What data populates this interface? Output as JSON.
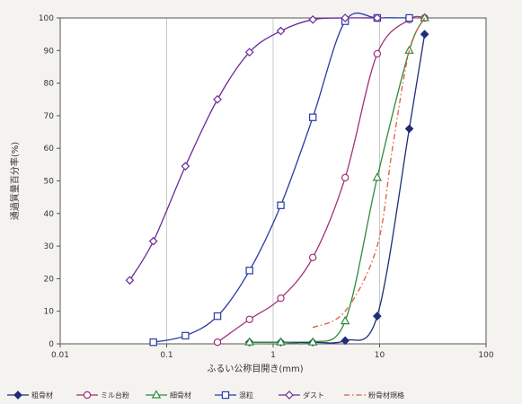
{
  "chart_data": {
    "type": "line",
    "xscale": "log",
    "xlim": [
      0.01,
      100
    ],
    "ylim": [
      0,
      100
    ],
    "x_ticks": [
      0.01,
      0.1,
      1,
      10,
      100
    ],
    "x_tick_labels": [
      "0.01",
      "0.1",
      "1",
      "10",
      "100"
    ],
    "y_ticks": [
      0,
      10,
      20,
      30,
      40,
      50,
      60,
      70,
      80,
      90,
      100
    ],
    "y_tick_labels": [
      "0",
      "10",
      "20",
      "30",
      "40",
      "50",
      "60",
      "70",
      "80",
      "90",
      "100"
    ],
    "xlabel": "ふるい公称目開き(mm)",
    "ylabel": "通過質量百分率(%)",
    "grid": "vertical",
    "legend_position": "bottom",
    "series": [
      {
        "name": "粗骨材",
        "color": "#1f2d7a",
        "marker": "filled-diamond",
        "line": "solid",
        "points": [
          [
            0.6,
            0.5
          ],
          [
            1.18,
            0.5
          ],
          [
            2.36,
            0.5
          ],
          [
            4.75,
            1
          ],
          [
            9.5,
            8.5
          ],
          [
            19,
            66
          ],
          [
            26.5,
            95
          ]
        ]
      },
      {
        "name": "ミル台粉",
        "color": "#a0307a",
        "marker": "open-circle",
        "line": "solid",
        "points": [
          [
            0.3,
            0.5
          ],
          [
            0.6,
            7.5
          ],
          [
            1.18,
            14
          ],
          [
            2.36,
            26.5
          ],
          [
            4.75,
            51
          ],
          [
            9.5,
            89
          ],
          [
            19,
            99.5
          ],
          [
            26.5,
            100
          ]
        ]
      },
      {
        "name": "細骨材",
        "color": "#2e8b3a",
        "marker": "open-triangle",
        "line": "solid",
        "points": [
          [
            0.6,
            0.5
          ],
          [
            1.18,
            0.5
          ],
          [
            2.36,
            0.5
          ],
          [
            4.75,
            7
          ],
          [
            9.5,
            51
          ],
          [
            19,
            90
          ],
          [
            26.5,
            100
          ]
        ]
      },
      {
        "name": "混粒",
        "color": "#2a3aa8",
        "marker": "open-square",
        "line": "solid",
        "points": [
          [
            0.075,
            0.5
          ],
          [
            0.15,
            2.5
          ],
          [
            0.3,
            8.5
          ],
          [
            0.6,
            22.5
          ],
          [
            1.18,
            42.5
          ],
          [
            2.36,
            69.5
          ],
          [
            4.75,
            99
          ],
          [
            9.5,
            100
          ],
          [
            19,
            100
          ]
        ]
      },
      {
        "name": "ダスト",
        "color": "#6a2a9a",
        "marker": "open-diamond",
        "line": "solid",
        "points": [
          [
            0.045,
            19.5
          ],
          [
            0.075,
            31.5
          ],
          [
            0.15,
            54.5
          ],
          [
            0.3,
            75
          ],
          [
            0.6,
            89.5
          ],
          [
            1.18,
            96
          ],
          [
            2.36,
            99.5
          ],
          [
            4.75,
            100
          ],
          [
            9.5,
            100
          ]
        ]
      },
      {
        "name": "粉骨材規格",
        "color": "#e05a3a",
        "marker": "none",
        "line": "dashdot",
        "points": [
          [
            2.36,
            5
          ],
          [
            4.75,
            10
          ],
          [
            9.5,
            30
          ],
          [
            13.2,
            60
          ],
          [
            19,
            90
          ],
          [
            26.5,
            100
          ]
        ]
      }
    ]
  }
}
